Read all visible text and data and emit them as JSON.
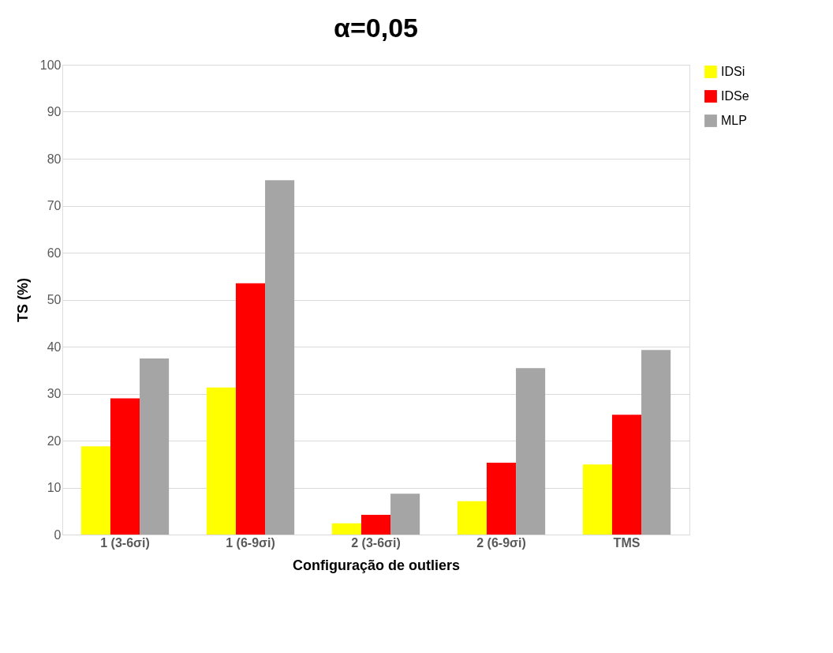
{
  "chart_data": {
    "type": "bar",
    "title": "α=0,05",
    "xlabel": "Configuração de outliers",
    "ylabel": "TS (%)",
    "categories": [
      "1 (3-6σi)",
      "1 (6-9σi)",
      "2 (3-6σi)",
      "2 (6-9σi)",
      "TMS"
    ],
    "series": [
      {
        "name": "IDSi",
        "color": "#ffff00",
        "values": [
          18.8,
          31.3,
          2.4,
          7.1,
          14.9
        ]
      },
      {
        "name": "IDSe",
        "color": "#ff0000",
        "values": [
          29.0,
          53.5,
          4.2,
          15.3,
          25.5
        ]
      },
      {
        "name": "MLP",
        "color": "#a5a5a5",
        "values": [
          37.5,
          75.4,
          8.7,
          35.4,
          39.3
        ]
      }
    ],
    "ylim": [
      0,
      100
    ],
    "yticks": [
      0,
      10,
      20,
      30,
      40,
      50,
      60,
      70,
      80,
      90,
      100
    ],
    "grid": "y",
    "legend": "right"
  }
}
